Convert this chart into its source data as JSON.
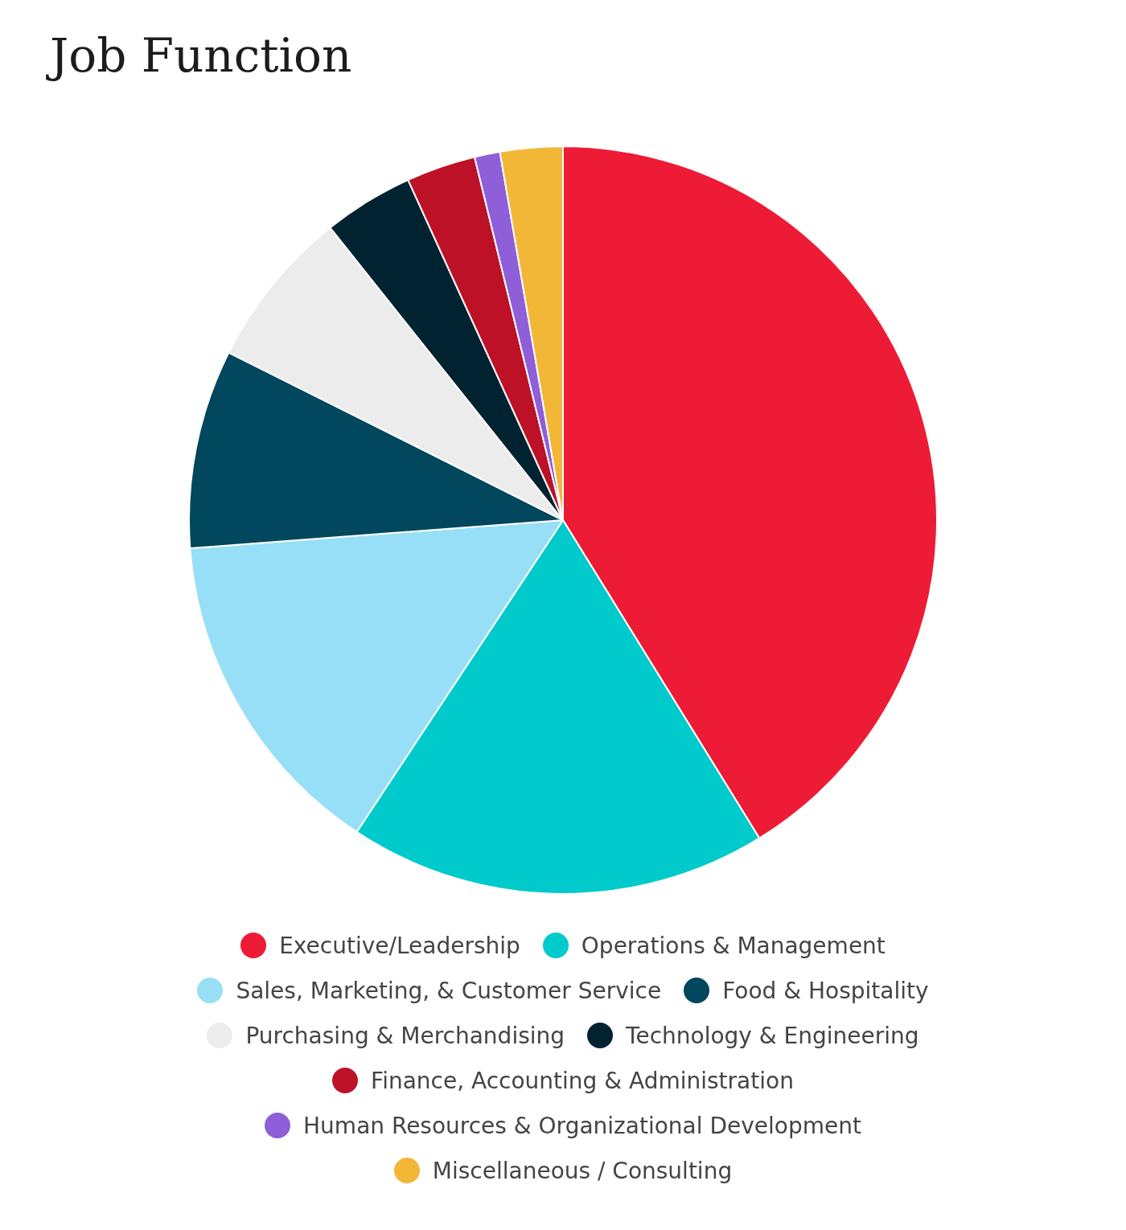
{
  "chart_data": {
    "type": "pie",
    "title": "Job Function",
    "categories": [
      "Executive/Leadership",
      "Operations & Management",
      "Sales, Marketing, & Customer Service",
      "Food & Hospitality",
      "Purchasing & Merchandising",
      "Technology & Engineering",
      "Finance, Accounting & Administration",
      "Human Resources & Organizational Development",
      "Miscellaneous / Consulting"
    ],
    "values": [
      41.2,
      18.1,
      14.5,
      8.6,
      6.9,
      3.9,
      3.0,
      1.1,
      2.7
    ],
    "colors": [
      "#ed1b36",
      "#00cacb",
      "#97dff7",
      "#01475e",
      "#ececec",
      "#012230",
      "#bc1127",
      "#8e5fd8",
      "#f2b736"
    ],
    "legend": "bottom"
  }
}
